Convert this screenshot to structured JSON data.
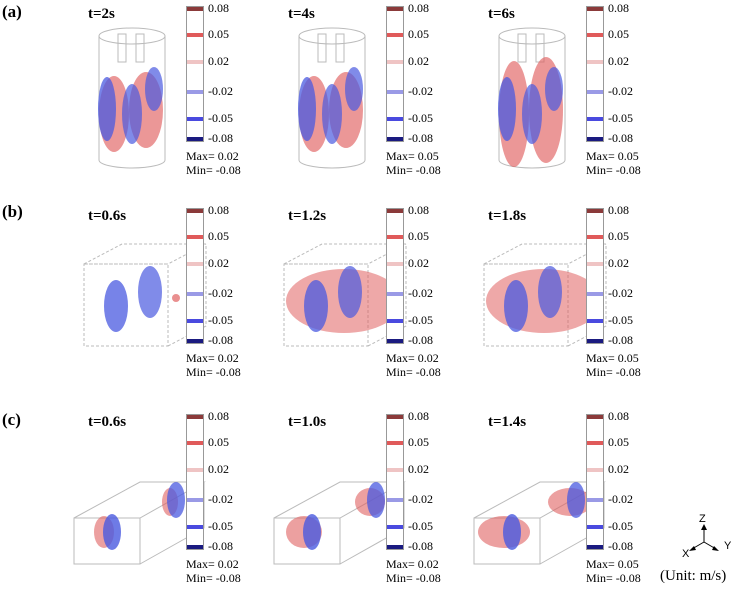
{
  "rows": [
    {
      "label": "(a)",
      "panels": [
        {
          "time": "t=2s",
          "max": "Max= 0.02",
          "min": "Min= -0.08"
        },
        {
          "time": "t=4s",
          "max": "Max= 0.05",
          "min": "Min= -0.08"
        },
        {
          "time": "t=6s",
          "max": "Max= 0.05",
          "min": "Min= -0.08"
        }
      ]
    },
    {
      "label": "(b)",
      "panels": [
        {
          "time": "t=0.6s",
          "max": "Max= 0.02",
          "min": "Min= -0.08"
        },
        {
          "time": "t=1.2s",
          "max": "Max= 0.02",
          "min": "Min= -0.08"
        },
        {
          "time": "t=1.8s",
          "max": "Max= 0.05",
          "min": "Min= -0.08"
        }
      ]
    },
    {
      "label": "(c)",
      "panels": [
        {
          "time": "t=0.6s",
          "max": "Max= 0.02",
          "min": "Min= -0.08"
        },
        {
          "time": "t=1.0s",
          "max": "Max= 0.02",
          "min": "Min= -0.08"
        },
        {
          "time": "t=1.4s",
          "max": "Max= 0.05",
          "min": "Min= -0.08"
        }
      ]
    }
  ],
  "colorbar": {
    "ticks": [
      {
        "label": "0.08",
        "color": "#8b3a3a"
      },
      {
        "label": "0.05",
        "color": "#e05a5a"
      },
      {
        "label": "0.02",
        "color": "#efc4c4"
      },
      {
        "label": "-0.02",
        "color": "#9a9ae6"
      },
      {
        "label": "-0.05",
        "color": "#4a4adf"
      },
      {
        "label": "-0.08",
        "color": "#1a1a80"
      }
    ]
  },
  "axes": {
    "z": "Z",
    "x": "X",
    "y": "Y"
  },
  "unit": "(Unit:  m/s)",
  "colors": {
    "positive": "#e06060",
    "negative": "#4a5ae0",
    "outline": "#bbbbbb"
  }
}
